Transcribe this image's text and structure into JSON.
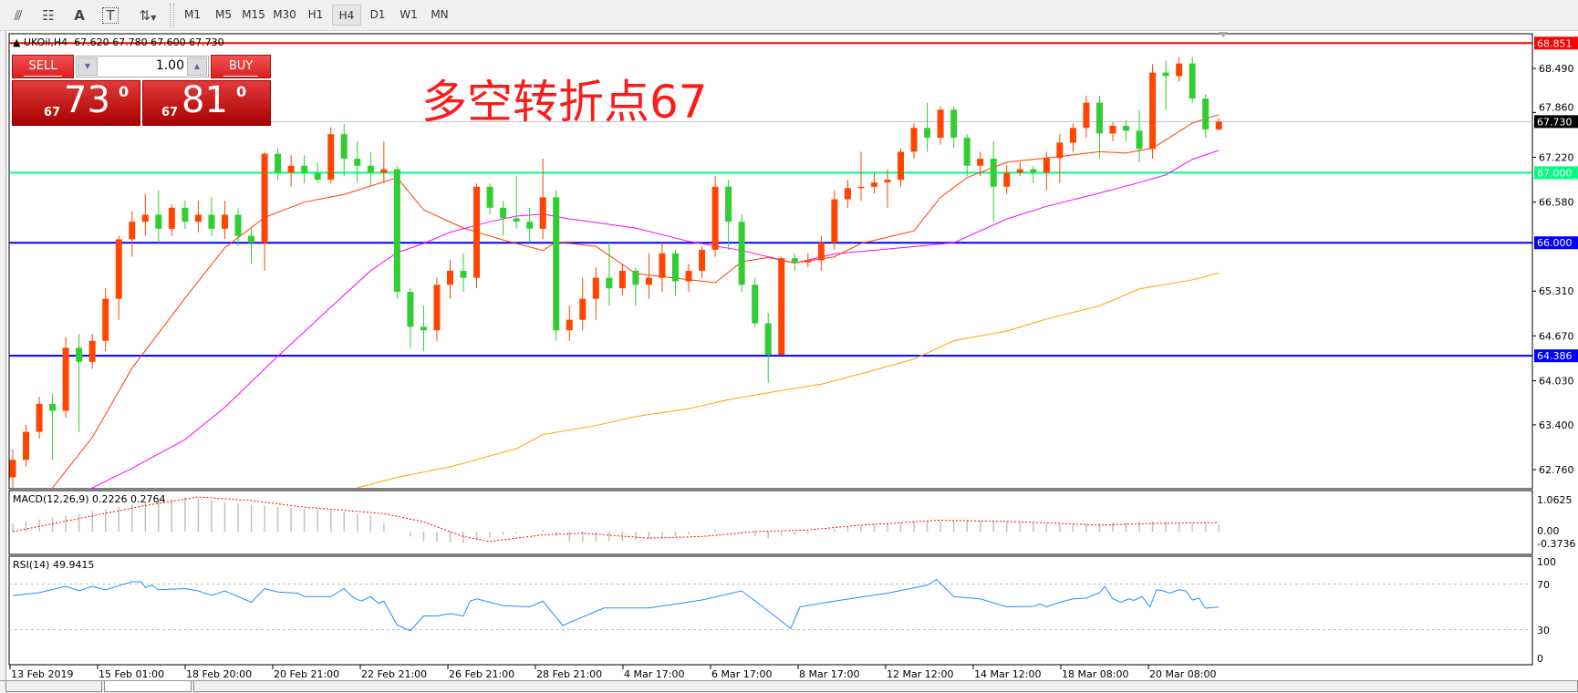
{
  "toolbar": {
    "tool_icons": [
      "grid-lines-icon",
      "fibonacci-icon",
      "text-icon",
      "text-label-icon",
      "arrows-icon"
    ],
    "tool_glyphs": [
      "⫻",
      "☷",
      "A",
      "T",
      "⇅"
    ],
    "timeframes": [
      "M1",
      "M5",
      "M15",
      "M30",
      "H1",
      "H4",
      "D1",
      "W1",
      "MN"
    ],
    "active_timeframe": "H4"
  },
  "chart": {
    "header": "▲ UKOil,H4  67.620 67.780 67.600 67.730",
    "annotation": "多空转折点67"
  },
  "trade_panel": {
    "sell_label": "SELL",
    "buy_label": "BUY",
    "lot": "1.00",
    "sell_price": {
      "big": "67",
      "main": "73",
      "sup": "0"
    },
    "buy_price": {
      "big": "67",
      "main": "81",
      "sup": "0"
    }
  },
  "chart_data": {
    "type": "candlestick",
    "symbol": "UKOil",
    "timeframe": "H4",
    "colors": {
      "up": "#ff4500",
      "down": "#32cd32",
      "ma_fast": "#ff3c00",
      "ma_mid": "#ff00ff",
      "ma_slow": "#ffa500",
      "macd_hist": "#c0c0c0",
      "macd_signal": "#ff0000",
      "rsi": "#1e90ff"
    },
    "y_range": [
      62.5,
      68.99
    ],
    "price_axis_labels": [
      "68.490",
      "67.860",
      "67.220",
      "66.580",
      "65.310",
      "64.670",
      "64.030",
      "63.400",
      "62.760"
    ],
    "level_lines": [
      {
        "price": 68.851,
        "label": "68.851",
        "color": "#ff0000",
        "text_color": "#ffffff"
      },
      {
        "price": 67.73,
        "label": "67.730",
        "color": "#c0c0c0",
        "label_bg": "#000000",
        "text_color": "#ffffff"
      },
      {
        "price": 67.0,
        "label": "67.000",
        "color": "#00ff7f",
        "text_color": "#ffffff"
      },
      {
        "price": 66.0,
        "label": "66.000",
        "color": "#0000ff",
        "text_color": "#ffffff"
      },
      {
        "price": 64.386,
        "label": "64.386",
        "color": "#0000ff",
        "text_color": "#ffffff"
      }
    ],
    "time_labels": [
      "13 Feb 2019",
      "15 Feb 01:00",
      "18 Feb 20:00",
      "20 Feb 21:00",
      "22 Feb 21:00",
      "26 Feb 21:00",
      "28 Feb 21:00",
      "4 Mar 17:00",
      "6 Mar 17:00",
      "8 Mar 17:00",
      "12 Mar 12:00",
      "14 Mar 12:00",
      "18 Mar 08:00",
      "20 Mar 08:00"
    ],
    "candles_ohlc": [
      [
        62.65,
        63.05,
        62.5,
        62.9
      ],
      [
        62.9,
        63.4,
        62.8,
        63.3
      ],
      [
        63.3,
        63.8,
        63.2,
        63.7
      ],
      [
        63.7,
        63.85,
        62.9,
        63.6
      ],
      [
        63.6,
        64.65,
        63.5,
        64.5
      ],
      [
        64.5,
        64.7,
        63.3,
        64.3
      ],
      [
        64.3,
        64.7,
        64.2,
        64.6
      ],
      [
        64.6,
        65.35,
        64.45,
        65.2
      ],
      [
        65.2,
        66.1,
        64.9,
        66.05
      ],
      [
        66.05,
        66.45,
        65.8,
        66.3
      ],
      [
        66.3,
        66.7,
        66.1,
        66.4
      ],
      [
        66.4,
        66.75,
        66.0,
        66.2
      ],
      [
        66.2,
        66.55,
        66.1,
        66.5
      ],
      [
        66.5,
        66.6,
        66.2,
        66.3
      ],
      [
        66.3,
        66.6,
        66.15,
        66.4
      ],
      [
        66.4,
        66.65,
        66.1,
        66.2
      ],
      [
        66.2,
        66.6,
        66.05,
        66.4
      ],
      [
        66.4,
        66.5,
        65.95,
        66.1
      ],
      [
        66.1,
        66.2,
        65.7,
        66.0
      ],
      [
        66.0,
        67.3,
        65.6,
        67.27
      ],
      [
        67.27,
        67.35,
        66.9,
        67.0
      ],
      [
        67.0,
        67.25,
        66.8,
        67.1
      ],
      [
        67.1,
        67.25,
        66.85,
        67.0
      ],
      [
        67.0,
        67.15,
        66.85,
        66.9
      ],
      [
        66.9,
        67.65,
        66.85,
        67.55
      ],
      [
        67.55,
        67.7,
        66.95,
        67.2
      ],
      [
        67.2,
        67.45,
        66.85,
        67.1
      ],
      [
        67.1,
        67.3,
        66.8,
        67.0
      ],
      [
        67.0,
        67.45,
        66.85,
        67.05
      ],
      [
        67.05,
        67.1,
        65.2,
        65.3
      ],
      [
        65.3,
        65.35,
        64.5,
        64.8
      ],
      [
        64.8,
        65.1,
        64.45,
        64.75
      ],
      [
        64.75,
        65.5,
        64.6,
        65.4
      ],
      [
        65.4,
        65.75,
        65.2,
        65.6
      ],
      [
        65.6,
        65.85,
        65.3,
        65.5
      ],
      [
        65.5,
        66.85,
        65.35,
        66.8
      ],
      [
        66.8,
        66.85,
        66.4,
        66.5
      ],
      [
        66.5,
        66.6,
        66.1,
        66.35
      ],
      [
        66.35,
        66.95,
        66.2,
        66.3
      ],
      [
        66.3,
        66.5,
        66.0,
        66.2
      ],
      [
        66.2,
        67.2,
        66.05,
        66.65
      ],
      [
        66.65,
        66.75,
        64.6,
        64.75
      ],
      [
        64.75,
        65.1,
        64.6,
        64.9
      ],
      [
        64.9,
        65.5,
        64.75,
        65.2
      ],
      [
        65.2,
        65.65,
        64.9,
        65.5
      ],
      [
        65.5,
        66.0,
        65.1,
        65.35
      ],
      [
        65.35,
        65.7,
        65.25,
        65.6
      ],
      [
        65.6,
        65.65,
        65.1,
        65.4
      ],
      [
        65.4,
        65.85,
        65.2,
        65.5
      ],
      [
        65.5,
        66.0,
        65.3,
        65.85
      ],
      [
        65.85,
        65.9,
        65.25,
        65.45
      ],
      [
        65.45,
        65.7,
        65.3,
        65.6
      ],
      [
        65.6,
        65.95,
        65.5,
        65.9
      ],
      [
        65.9,
        66.95,
        65.8,
        66.8
      ],
      [
        66.8,
        66.9,
        65.9,
        66.3
      ],
      [
        66.3,
        66.4,
        65.3,
        65.4
      ],
      [
        65.4,
        65.5,
        64.8,
        64.85
      ],
      [
        64.85,
        65.0,
        64.0,
        64.4
      ],
      [
        64.4,
        65.8,
        64.4,
        65.78
      ],
      [
        65.78,
        65.85,
        65.6,
        65.72
      ],
      [
        65.72,
        65.85,
        65.65,
        65.75
      ],
      [
        65.75,
        66.1,
        65.6,
        66.0
      ],
      [
        66.0,
        66.75,
        65.9,
        66.62
      ],
      [
        66.62,
        66.9,
        66.5,
        66.78
      ],
      [
        66.78,
        67.3,
        66.6,
        66.8
      ],
      [
        66.8,
        67.0,
        66.7,
        66.86
      ],
      [
        66.86,
        67.05,
        66.5,
        66.9
      ],
      [
        66.9,
        67.35,
        66.8,
        67.3
      ],
      [
        67.3,
        67.7,
        67.2,
        67.64
      ],
      [
        67.64,
        68.0,
        67.3,
        67.5
      ],
      [
        67.5,
        67.95,
        67.4,
        67.9
      ],
      [
        67.9,
        67.95,
        67.35,
        67.5
      ],
      [
        67.5,
        67.55,
        66.95,
        67.1
      ],
      [
        67.1,
        67.3,
        66.95,
        67.2
      ],
      [
        67.2,
        67.45,
        66.3,
        66.8
      ],
      [
        66.8,
        67.1,
        66.7,
        67.0
      ],
      [
        67.0,
        67.15,
        66.95,
        67.05
      ],
      [
        67.05,
        67.1,
        66.85,
        67.0
      ],
      [
        67.0,
        67.3,
        66.75,
        67.21
      ],
      [
        67.21,
        67.55,
        66.85,
        67.43
      ],
      [
        67.43,
        67.7,
        67.3,
        67.64
      ],
      [
        67.64,
        68.1,
        67.5,
        68.0
      ],
      [
        68.0,
        68.1,
        67.2,
        67.56
      ],
      [
        67.56,
        67.72,
        67.45,
        67.67
      ],
      [
        67.67,
        67.75,
        67.45,
        67.6
      ],
      [
        67.6,
        67.9,
        67.15,
        67.34
      ],
      [
        67.34,
        68.55,
        67.2,
        68.43
      ],
      [
        68.43,
        68.6,
        67.9,
        68.38
      ],
      [
        68.38,
        68.65,
        68.3,
        68.56
      ],
      [
        68.56,
        68.65,
        68.0,
        68.06
      ],
      [
        68.06,
        68.12,
        67.5,
        67.62
      ],
      [
        67.62,
        67.78,
        67.6,
        67.73
      ]
    ],
    "ma_fast": [
      [
        3,
        62.5
      ],
      [
        6,
        63.22
      ],
      [
        9,
        64.21
      ],
      [
        13,
        65.21
      ],
      [
        16,
        65.93
      ],
      [
        19,
        66.36
      ],
      [
        22,
        66.58
      ],
      [
        25,
        66.69
      ],
      [
        29,
        66.93
      ],
      [
        31,
        66.47
      ],
      [
        34,
        66.21
      ],
      [
        37,
        66.04
      ],
      [
        40,
        65.89
      ],
      [
        41,
        66.01
      ],
      [
        44,
        65.95
      ],
      [
        47,
        65.56
      ],
      [
        53,
        65.43
      ],
      [
        55,
        65.73
      ],
      [
        57,
        65.79
      ],
      [
        59,
        65.71
      ],
      [
        62,
        65.8
      ],
      [
        64,
        65.99
      ],
      [
        68,
        66.17
      ],
      [
        70,
        66.65
      ],
      [
        72,
        66.93
      ],
      [
        75,
        67.15
      ],
      [
        78,
        67.21
      ],
      [
        82,
        67.3
      ],
      [
        84,
        67.28
      ],
      [
        86,
        67.35
      ],
      [
        89,
        67.71
      ],
      [
        91,
        67.83
      ]
    ],
    "ma_mid": [
      [
        6,
        62.5
      ],
      [
        9,
        62.78
      ],
      [
        13,
        63.19
      ],
      [
        16,
        63.65
      ],
      [
        20,
        64.38
      ],
      [
        24,
        65.08
      ],
      [
        27,
        65.6
      ],
      [
        29,
        65.86
      ],
      [
        31,
        65.99
      ],
      [
        33,
        66.15
      ],
      [
        36,
        66.3
      ],
      [
        38,
        66.38
      ],
      [
        40,
        66.41
      ],
      [
        42,
        66.34
      ],
      [
        44,
        66.29
      ],
      [
        47,
        66.21
      ],
      [
        51,
        66.02
      ],
      [
        55,
        65.89
      ],
      [
        59,
        65.71
      ],
      [
        62,
        65.84
      ],
      [
        66,
        65.91
      ],
      [
        71,
        66.0
      ],
      [
        75,
        66.34
      ],
      [
        78,
        66.52
      ],
      [
        82,
        66.71
      ],
      [
        85,
        66.86
      ],
      [
        87,
        66.97
      ],
      [
        89,
        67.19
      ],
      [
        91,
        67.32
      ]
    ],
    "ma_slow": [
      [
        26,
        62.5
      ],
      [
        29,
        62.65
      ],
      [
        33,
        62.8
      ],
      [
        38,
        63.06
      ],
      [
        40,
        63.26
      ],
      [
        44,
        63.39
      ],
      [
        47,
        63.52
      ],
      [
        51,
        63.63
      ],
      [
        54,
        63.76
      ],
      [
        58,
        63.89
      ],
      [
        61,
        63.98
      ],
      [
        64,
        64.13
      ],
      [
        68,
        64.34
      ],
      [
        71,
        64.6
      ],
      [
        75,
        64.74
      ],
      [
        78,
        64.91
      ],
      [
        82,
        65.1
      ],
      [
        85,
        65.34
      ],
      [
        89,
        65.47
      ],
      [
        91,
        65.57
      ]
    ],
    "macd": {
      "label": "MACD(12,26,9) 0.2226 0.2764",
      "axis_labels": [
        "1.0625",
        "0.00",
        "-0.3736"
      ],
      "axis_values": [
        1.0625,
        0,
        -0.3736
      ],
      "histogram": [
        [
          0,
          0.25
        ],
        [
          5,
          0.55
        ],
        [
          10,
          0.9
        ],
        [
          13,
          1.06
        ],
        [
          16,
          0.9
        ],
        [
          20,
          0.75
        ],
        [
          24,
          0.65
        ],
        [
          27,
          0.5
        ],
        [
          29,
          0.0
        ],
        [
          31,
          -0.3
        ],
        [
          34,
          -0.35
        ],
        [
          37,
          -0.1
        ],
        [
          40,
          0.05
        ],
        [
          42,
          -0.3
        ],
        [
          46,
          -0.3
        ],
        [
          50,
          -0.15
        ],
        [
          53,
          0.05
        ],
        [
          57,
          -0.2
        ],
        [
          60,
          -0.05
        ],
        [
          63,
          0.15
        ],
        [
          68,
          0.3
        ],
        [
          72,
          0.35
        ],
        [
          76,
          0.28
        ],
        [
          80,
          0.22
        ],
        [
          86,
          0.32
        ],
        [
          91,
          0.22
        ]
      ],
      "signal": [
        [
          0,
          0.0
        ],
        [
          5,
          0.4
        ],
        [
          10,
          0.8
        ],
        [
          14,
          1.06
        ],
        [
          18,
          0.95
        ],
        [
          22,
          0.75
        ],
        [
          26,
          0.62
        ],
        [
          28,
          0.55
        ],
        [
          31,
          0.3
        ],
        [
          34,
          -0.15
        ],
        [
          36,
          -0.3
        ],
        [
          40,
          -0.1
        ],
        [
          43,
          -0.05
        ],
        [
          48,
          -0.2
        ],
        [
          52,
          -0.15
        ],
        [
          56,
          0.0
        ],
        [
          60,
          0.05
        ],
        [
          64,
          0.2
        ],
        [
          70,
          0.35
        ],
        [
          76,
          0.3
        ],
        [
          82,
          0.2
        ],
        [
          86,
          0.25
        ],
        [
          91,
          0.28
        ]
      ]
    },
    "rsi": {
      "label": "RSI(14) 49.9415",
      "axis_labels": [
        "100",
        "70",
        "30",
        "0"
      ],
      "axis_values": [
        100,
        70,
        30,
        0
      ],
      "levels": [
        70,
        30
      ],
      "values": [
        [
          0,
          60
        ],
        [
          2,
          62.4
        ],
        [
          4,
          68
        ],
        [
          5,
          64
        ],
        [
          6,
          68
        ],
        [
          7,
          65
        ],
        [
          9,
          72
        ],
        [
          9.7,
          72
        ],
        [
          10,
          67
        ],
        [
          10.5,
          69
        ],
        [
          11,
          65
        ],
        [
          13,
          66
        ],
        [
          14,
          64
        ],
        [
          15,
          60
        ],
        [
          16,
          64
        ],
        [
          17,
          59
        ],
        [
          18,
          54
        ],
        [
          19,
          66
        ],
        [
          20,
          63
        ],
        [
          21.5,
          62
        ],
        [
          22,
          59
        ],
        [
          24,
          59
        ],
        [
          25,
          66
        ],
        [
          25.7,
          58
        ],
        [
          26.3,
          55
        ],
        [
          27,
          59
        ],
        [
          27.6,
          53
        ],
        [
          28,
          55
        ],
        [
          29,
          34
        ],
        [
          30,
          29
        ],
        [
          31,
          42
        ],
        [
          32,
          42
        ],
        [
          33,
          44
        ],
        [
          34,
          42
        ],
        [
          34.5,
          55
        ],
        [
          35,
          57
        ],
        [
          37,
          51
        ],
        [
          39,
          50
        ],
        [
          40,
          55
        ],
        [
          41.5,
          33.6
        ],
        [
          44.6,
          49
        ],
        [
          48,
          49
        ],
        [
          52,
          56
        ],
        [
          55,
          64
        ],
        [
          56.6,
          50
        ],
        [
          58.7,
          31
        ],
        [
          59.4,
          50
        ],
        [
          62,
          55
        ],
        [
          66,
          62
        ],
        [
          69,
          69
        ],
        [
          69.7,
          74
        ],
        [
          71,
          59
        ],
        [
          73,
          57
        ],
        [
          75,
          50
        ],
        [
          77,
          50.4
        ],
        [
          77.5,
          52.5
        ],
        [
          78,
          50
        ],
        [
          79,
          54
        ],
        [
          80,
          57
        ],
        [
          81,
          57.6
        ],
        [
          82,
          62.4
        ],
        [
          82.4,
          68
        ],
        [
          83,
          57
        ],
        [
          83.6,
          54
        ],
        [
          84.2,
          57
        ],
        [
          84.6,
          55.6
        ],
        [
          85.2,
          59
        ],
        [
          85.8,
          50
        ],
        [
          86.3,
          65
        ],
        [
          86.8,
          64
        ],
        [
          87.3,
          62
        ],
        [
          88,
          65
        ],
        [
          88.5,
          64
        ],
        [
          89,
          56
        ],
        [
          89.5,
          57.6
        ],
        [
          90,
          48.8
        ],
        [
          91,
          49.94
        ]
      ]
    }
  }
}
